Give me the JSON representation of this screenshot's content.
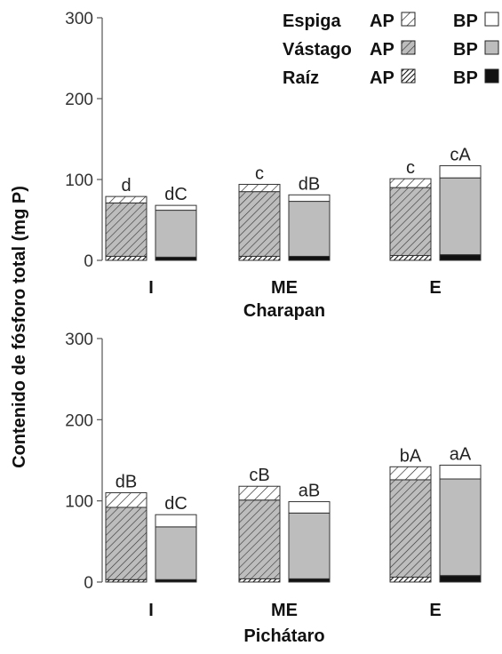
{
  "ylabel": "Contenido de fósforo total (mg P)",
  "legend": {
    "rows": [
      {
        "name": "Espiga",
        "ap_label": "AP",
        "bp_label": "BP"
      },
      {
        "name": "Vástago",
        "ap_label": "AP",
        "bp_label": "BP"
      },
      {
        "name": "Raíz",
        "ap_label": "AP",
        "bp_label": "BP"
      }
    ]
  },
  "chart_data": [
    {
      "type": "bar",
      "stacked": true,
      "xlabel": "Charapan",
      "categories": [
        "I",
        "ME",
        "E"
      ],
      "ylim": [
        0,
        300
      ],
      "yticks": [
        0,
        100,
        200,
        300
      ],
      "groups": [
        "AP",
        "BP"
      ],
      "components": [
        "Raíz",
        "Vástago",
        "Espiga"
      ],
      "bars": [
        {
          "category": "I",
          "group": "AP",
          "raiz": 5,
          "vastago": 66,
          "espiga": 8,
          "label": "d"
        },
        {
          "category": "I",
          "group": "BP",
          "raiz": 4,
          "vastago": 58,
          "espiga": 6,
          "label": "dC"
        },
        {
          "category": "ME",
          "group": "AP",
          "raiz": 5,
          "vastago": 80,
          "espiga": 9,
          "label": "c"
        },
        {
          "category": "ME",
          "group": "BP",
          "raiz": 5,
          "vastago": 68,
          "espiga": 8,
          "label": "dB"
        },
        {
          "category": "E",
          "group": "AP",
          "raiz": 6,
          "vastago": 84,
          "espiga": 11,
          "label": "c"
        },
        {
          "category": "E",
          "group": "BP",
          "raiz": 7,
          "vastago": 95,
          "espiga": 15,
          "label": "cA"
        }
      ]
    },
    {
      "type": "bar",
      "stacked": true,
      "xlabel": "Pichátaro",
      "categories": [
        "I",
        "ME",
        "E"
      ],
      "ylim": [
        0,
        300
      ],
      "yticks": [
        0,
        100,
        200,
        300
      ],
      "groups": [
        "AP",
        "BP"
      ],
      "components": [
        "Raíz",
        "Vástago",
        "Espiga"
      ],
      "bars": [
        {
          "category": "I",
          "group": "AP",
          "raiz": 3,
          "vastago": 89,
          "espiga": 18,
          "label": "dB"
        },
        {
          "category": "I",
          "group": "BP",
          "raiz": 3,
          "vastago": 65,
          "espiga": 15,
          "label": "dC"
        },
        {
          "category": "ME",
          "group": "AP",
          "raiz": 4,
          "vastago": 97,
          "espiga": 17,
          "label": "cB"
        },
        {
          "category": "ME",
          "group": "BP",
          "raiz": 4,
          "vastago": 81,
          "espiga": 14,
          "label": "aB"
        },
        {
          "category": "E",
          "group": "AP",
          "raiz": 6,
          "vastago": 120,
          "espiga": 16,
          "label": "bA"
        },
        {
          "category": "E",
          "group": "BP",
          "raiz": 8,
          "vastago": 119,
          "espiga": 17,
          "label": "aA"
        }
      ]
    }
  ]
}
